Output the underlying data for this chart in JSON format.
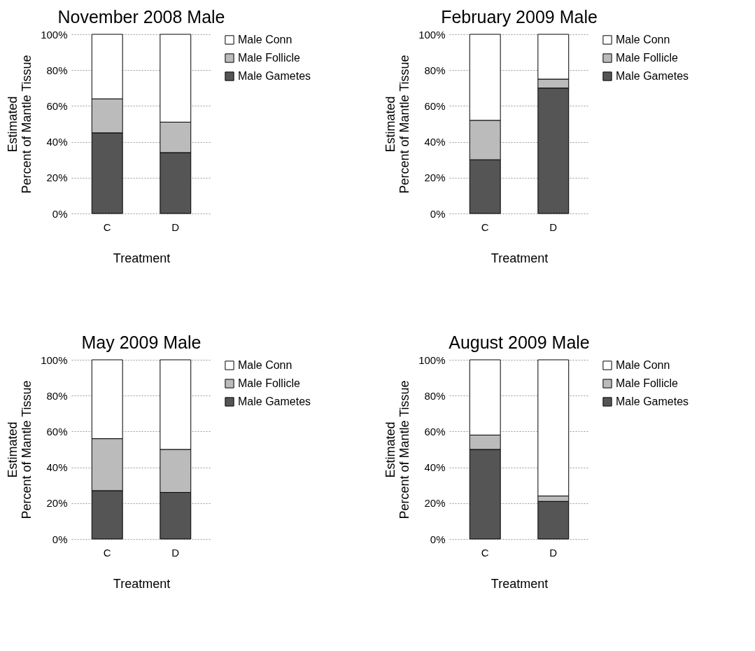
{
  "chart_data": [
    {
      "type": "bar",
      "title": "November 2008 Male",
      "xlabel": "Treatment",
      "ylabel": "Estimated Percent of Mantle Tissue",
      "categories": [
        "C",
        "D"
      ],
      "stacked": true,
      "ylim": [
        0,
        100
      ],
      "yticks": [
        {
          "value": 0,
          "label": "0%"
        },
        {
          "value": 20,
          "label": "20%"
        },
        {
          "value": 40,
          "label": "40%"
        },
        {
          "value": 60,
          "label": "60%"
        },
        {
          "value": 80,
          "label": "80%"
        },
        {
          "value": 100,
          "label": "100%"
        }
      ],
      "grid": "y",
      "legend": "right",
      "series": [
        {
          "name": "Male Gametes",
          "color": "#555555",
          "values": [
            45,
            34
          ]
        },
        {
          "name": "Male Follicle",
          "color": "#bbbbbb",
          "values": [
            19,
            17
          ]
        },
        {
          "name": "Male Conn",
          "color": "#ffffff",
          "values": [
            36,
            49
          ]
        }
      ]
    },
    {
      "type": "bar",
      "title": "February 2009 Male",
      "xlabel": "Treatment",
      "ylabel": "Estimated Percent of Mantle Tissue",
      "categories": [
        "C",
        "D"
      ],
      "stacked": true,
      "ylim": [
        0,
        100
      ],
      "yticks": [
        {
          "value": 0,
          "label": "0%"
        },
        {
          "value": 20,
          "label": "20%"
        },
        {
          "value": 40,
          "label": "40%"
        },
        {
          "value": 60,
          "label": "60%"
        },
        {
          "value": 80,
          "label": "80%"
        },
        {
          "value": 100,
          "label": "100%"
        }
      ],
      "grid": "y",
      "legend": "right",
      "series": [
        {
          "name": "Male Gametes",
          "color": "#555555",
          "values": [
            30,
            70
          ]
        },
        {
          "name": "Male Follicle",
          "color": "#bbbbbb",
          "values": [
            22,
            5
          ]
        },
        {
          "name": "Male Conn",
          "color": "#ffffff",
          "values": [
            48,
            25
          ]
        }
      ]
    },
    {
      "type": "bar",
      "title": "May 2009 Male",
      "xlabel": "Treatment",
      "ylabel": "Estimated Percent of Mantle Tissue",
      "categories": [
        "C",
        "D"
      ],
      "stacked": true,
      "ylim": [
        0,
        100
      ],
      "yticks": [
        {
          "value": 0,
          "label": "0%"
        },
        {
          "value": 20,
          "label": "20%"
        },
        {
          "value": 40,
          "label": "40%"
        },
        {
          "value": 60,
          "label": "60%"
        },
        {
          "value": 80,
          "label": "80%"
        },
        {
          "value": 100,
          "label": "100%"
        }
      ],
      "grid": "y",
      "legend": "right",
      "series": [
        {
          "name": "Male Gametes",
          "color": "#555555",
          "values": [
            27,
            26
          ]
        },
        {
          "name": "Male Follicle",
          "color": "#bbbbbb",
          "values": [
            29,
            24
          ]
        },
        {
          "name": "Male Conn",
          "color": "#ffffff",
          "values": [
            44,
            50
          ]
        }
      ]
    },
    {
      "type": "bar",
      "title": "August 2009 Male",
      "xlabel": "Treatment",
      "ylabel": "Estimated Percent of Mantle Tissue",
      "categories": [
        "C",
        "D"
      ],
      "stacked": true,
      "ylim": [
        0,
        100
      ],
      "yticks": [
        {
          "value": 0,
          "label": "0%"
        },
        {
          "value": 20,
          "label": "20%"
        },
        {
          "value": 40,
          "label": "40%"
        },
        {
          "value": 60,
          "label": "60%"
        },
        {
          "value": 80,
          "label": "80%"
        },
        {
          "value": 100,
          "label": "100%"
        }
      ],
      "grid": "y",
      "legend": "right",
      "series": [
        {
          "name": "Male Gametes",
          "color": "#555555",
          "values": [
            50,
            21
          ]
        },
        {
          "name": "Male Follicle",
          "color": "#bbbbbb",
          "values": [
            8,
            3
          ]
        },
        {
          "name": "Male Conn",
          "color": "#ffffff",
          "values": [
            42,
            76
          ]
        }
      ]
    }
  ]
}
